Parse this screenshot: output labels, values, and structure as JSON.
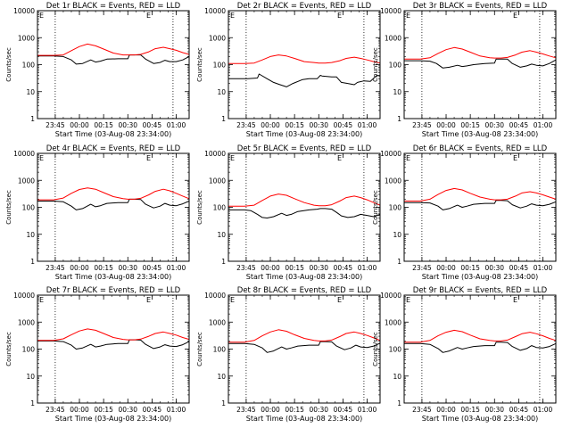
{
  "layout": {
    "rows": 3,
    "cols": 3
  },
  "common": {
    "ylabel": "Counts/sec",
    "xlabel": "Start Time (03-Aug-08 23:34:00)",
    "x_ticks": [
      "23:45",
      "00:00",
      "00:15",
      "00:30",
      "00:45",
      "01:00"
    ],
    "y_ticks": [
      "1",
      "10",
      "100",
      "1000",
      "10000"
    ],
    "corner_mark": "E"
  },
  "chart_data": [
    {
      "type": "line",
      "title": "Det 1r BLACK = Events, RED = LLD",
      "y_scale": "log",
      "ylim": [
        1,
        10000
      ],
      "x_range_minutes_from_start": [
        0,
        94
      ],
      "series": [
        {
          "color": "#000000",
          "x": [
            0,
            10,
            16,
            21,
            24,
            28,
            33,
            36,
            39,
            43,
            50,
            56,
            57,
            60,
            64,
            67,
            72,
            76,
            79,
            82,
            86,
            90,
            94
          ],
          "y": [
            210,
            210,
            200,
            150,
            105,
            110,
            150,
            125,
            135,
            160,
            165,
            165,
            230,
            230,
            230,
            160,
            110,
            120,
            145,
            130,
            130,
            150,
            200
          ]
        },
        {
          "color": "#ff0000",
          "x": [
            0,
            10,
            16,
            21,
            26,
            31,
            36,
            41,
            47,
            53,
            56,
            60,
            64,
            69,
            73,
            78,
            82,
            86,
            90,
            94
          ],
          "y": [
            220,
            220,
            230,
            330,
            470,
            580,
            500,
            380,
            270,
            230,
            230,
            230,
            240,
            300,
            390,
            440,
            390,
            340,
            280,
            240
          ]
        }
      ]
    },
    {
      "type": "line",
      "title": "Det 2r BLACK = Events, RED = LLD",
      "y_scale": "log",
      "ylim": [
        1,
        10000
      ],
      "x_range_minutes_from_start": [
        0,
        94
      ],
      "series": [
        {
          "color": "#000000",
          "x": [
            0,
            12,
            18,
            19,
            24,
            28,
            32,
            36,
            40,
            46,
            50,
            55,
            57,
            58,
            64,
            67,
            70,
            74,
            78,
            80,
            84,
            88,
            92,
            94
          ],
          "y": [
            30,
            30,
            32,
            45,
            30,
            22,
            18,
            15,
            20,
            28,
            30,
            30,
            40,
            38,
            35,
            35,
            22,
            20,
            18,
            22,
            25,
            24,
            40,
            38
          ]
        },
        {
          "color": "#ff0000",
          "x": [
            0,
            10,
            16,
            21,
            26,
            31,
            36,
            41,
            47,
            53,
            56,
            60,
            64,
            69,
            73,
            78,
            82,
            86,
            90,
            94
          ],
          "y": [
            110,
            110,
            115,
            150,
            200,
            230,
            210,
            170,
            130,
            120,
            115,
            115,
            120,
            140,
            170,
            190,
            170,
            150,
            130,
            115
          ]
        }
      ]
    },
    {
      "type": "line",
      "title": "Det 3r BLACK = Events, RED = LLD",
      "y_scale": "log",
      "ylim": [
        1,
        10000
      ],
      "x_range_minutes_from_start": [
        0,
        94
      ],
      "series": [
        {
          "color": "#000000",
          "x": [
            0,
            10,
            16,
            20,
            24,
            28,
            33,
            36,
            39,
            43,
            50,
            56,
            57,
            60,
            64,
            67,
            72,
            76,
            79,
            82,
            86,
            90,
            94
          ],
          "y": [
            140,
            140,
            135,
            110,
            75,
            80,
            95,
            85,
            90,
            100,
            110,
            115,
            160,
            160,
            160,
            110,
            80,
            90,
            105,
            95,
            90,
            110,
            150
          ]
        },
        {
          "color": "#ff0000",
          "x": [
            0,
            10,
            16,
            21,
            26,
            31,
            36,
            41,
            47,
            53,
            56,
            60,
            64,
            69,
            73,
            78,
            82,
            86,
            90,
            94
          ],
          "y": [
            160,
            160,
            180,
            260,
            360,
            430,
            380,
            290,
            210,
            180,
            175,
            175,
            185,
            230,
            290,
            330,
            290,
            250,
            210,
            180
          ]
        }
      ]
    },
    {
      "type": "line",
      "title": "Det 4r BLACK = Events, RED = LLD",
      "y_scale": "log",
      "ylim": [
        1,
        10000
      ],
      "x_range_minutes_from_start": [
        0,
        94
      ],
      "series": [
        {
          "color": "#000000",
          "x": [
            0,
            10,
            16,
            21,
            24,
            28,
            33,
            36,
            39,
            43,
            50,
            56,
            57,
            60,
            64,
            67,
            72,
            76,
            79,
            82,
            86,
            90,
            94
          ],
          "y": [
            170,
            170,
            160,
            110,
            80,
            90,
            130,
            105,
            115,
            140,
            150,
            150,
            200,
            200,
            195,
            130,
            95,
            110,
            140,
            120,
            115,
            135,
            170
          ]
        },
        {
          "color": "#ff0000",
          "x": [
            0,
            10,
            16,
            21,
            26,
            31,
            36,
            41,
            47,
            53,
            56,
            60,
            64,
            69,
            73,
            78,
            82,
            86,
            90,
            94
          ],
          "y": [
            190,
            190,
            220,
            330,
            460,
            520,
            470,
            350,
            250,
            210,
            200,
            200,
            215,
            290,
            390,
            470,
            410,
            330,
            260,
            210
          ]
        }
      ]
    },
    {
      "type": "line",
      "title": "Det 5r BLACK = Events, RED = LLD",
      "y_scale": "log",
      "ylim": [
        1,
        10000
      ],
      "x_range_minutes_from_start": [
        0,
        94
      ],
      "series": [
        {
          "color": "#000000",
          "x": [
            0,
            10,
            14,
            18,
            21,
            24,
            28,
            33,
            36,
            39,
            43,
            50,
            55,
            57,
            60,
            64,
            67,
            70,
            74,
            78,
            82,
            86,
            90,
            94
          ],
          "y": [
            80,
            80,
            75,
            55,
            42,
            40,
            45,
            60,
            50,
            55,
            70,
            80,
            85,
            90,
            90,
            85,
            65,
            48,
            42,
            45,
            55,
            50,
            45,
            55
          ]
        },
        {
          "color": "#ff0000",
          "x": [
            0,
            10,
            16,
            21,
            26,
            31,
            36,
            41,
            47,
            53,
            56,
            60,
            64,
            69,
            73,
            78,
            82,
            86,
            90,
            94
          ],
          "y": [
            110,
            110,
            120,
            180,
            260,
            310,
            280,
            210,
            150,
            120,
            115,
            115,
            125,
            170,
            230,
            260,
            230,
            190,
            150,
            120
          ]
        }
      ]
    },
    {
      "type": "line",
      "title": "Det 6r BLACK = Events, RED = LLD",
      "y_scale": "log",
      "ylim": [
        1,
        10000
      ],
      "x_range_minutes_from_start": [
        0,
        94
      ],
      "series": [
        {
          "color": "#000000",
          "x": [
            0,
            10,
            16,
            21,
            24,
            28,
            33,
            36,
            39,
            43,
            50,
            56,
            57,
            60,
            64,
            67,
            72,
            76,
            79,
            82,
            86,
            90,
            94
          ],
          "y": [
            150,
            150,
            145,
            110,
            80,
            90,
            120,
            100,
            110,
            130,
            140,
            140,
            180,
            180,
            175,
            125,
            95,
            110,
            135,
            120,
            115,
            130,
            160
          ]
        },
        {
          "color": "#ff0000",
          "x": [
            0,
            10,
            16,
            21,
            26,
            31,
            36,
            41,
            47,
            53,
            56,
            60,
            64,
            69,
            73,
            78,
            82,
            86,
            90,
            94
          ],
          "y": [
            170,
            170,
            200,
            300,
            420,
            500,
            440,
            330,
            240,
            200,
            190,
            190,
            200,
            260,
            340,
            380,
            340,
            290,
            240,
            200
          ]
        }
      ]
    },
    {
      "type": "line",
      "title": "Det 7r BLACK = Events, RED = LLD",
      "y_scale": "log",
      "ylim": [
        1,
        10000
      ],
      "x_range_minutes_from_start": [
        0,
        94
      ],
      "series": [
        {
          "color": "#000000",
          "x": [
            0,
            10,
            16,
            21,
            24,
            28,
            33,
            36,
            39,
            43,
            50,
            56,
            57,
            60,
            64,
            67,
            72,
            76,
            79,
            82,
            86,
            90,
            94
          ],
          "y": [
            200,
            200,
            190,
            140,
            100,
            110,
            150,
            120,
            130,
            150,
            160,
            160,
            220,
            220,
            215,
            150,
            105,
            120,
            145,
            130,
            125,
            145,
            190
          ]
        },
        {
          "color": "#ff0000",
          "x": [
            0,
            10,
            16,
            21,
            26,
            31,
            36,
            41,
            47,
            53,
            56,
            60,
            64,
            69,
            73,
            78,
            82,
            86,
            90,
            94
          ],
          "y": [
            210,
            210,
            240,
            340,
            470,
            560,
            500,
            380,
            270,
            230,
            220,
            220,
            235,
            300,
            380,
            430,
            380,
            330,
            270,
            230
          ]
        }
      ]
    },
    {
      "type": "line",
      "title": "Det 8r BLACK = Events, RED = LLD",
      "y_scale": "log",
      "ylim": [
        1,
        10000
      ],
      "x_range_minutes_from_start": [
        0,
        94
      ],
      "series": [
        {
          "color": "#000000",
          "x": [
            0,
            10,
            16,
            21,
            24,
            28,
            33,
            36,
            39,
            43,
            50,
            56,
            57,
            60,
            64,
            67,
            72,
            76,
            79,
            82,
            86,
            90,
            94
          ],
          "y": [
            160,
            160,
            150,
            110,
            75,
            85,
            120,
            100,
            110,
            130,
            140,
            140,
            190,
            190,
            185,
            130,
            95,
            110,
            140,
            120,
            115,
            130,
            165
          ]
        },
        {
          "color": "#ff0000",
          "x": [
            0,
            10,
            16,
            21,
            26,
            31,
            36,
            41,
            47,
            53,
            56,
            60,
            64,
            69,
            73,
            78,
            82,
            86,
            90,
            94
          ],
          "y": [
            180,
            180,
            210,
            310,
            430,
            520,
            460,
            340,
            250,
            210,
            200,
            200,
            215,
            290,
            380,
            430,
            380,
            320,
            260,
            210
          ]
        }
      ]
    },
    {
      "type": "line",
      "title": "Det 9r BLACK = Events, RED = LLD",
      "y_scale": "log",
      "ylim": [
        1,
        10000
      ],
      "x_range_minutes_from_start": [
        0,
        94
      ],
      "series": [
        {
          "color": "#000000",
          "x": [
            0,
            10,
            16,
            21,
            24,
            28,
            33,
            36,
            39,
            43,
            50,
            56,
            57,
            60,
            64,
            67,
            72,
            76,
            79,
            82,
            86,
            90,
            94
          ],
          "y": [
            160,
            160,
            150,
            105,
            75,
            85,
            115,
            100,
            110,
            125,
            135,
            135,
            180,
            180,
            175,
            125,
            90,
            105,
            135,
            115,
            110,
            125,
            160
          ]
        },
        {
          "color": "#ff0000",
          "x": [
            0,
            10,
            16,
            21,
            26,
            31,
            36,
            41,
            47,
            53,
            56,
            60,
            64,
            69,
            73,
            78,
            82,
            86,
            90,
            94
          ],
          "y": [
            180,
            180,
            210,
            310,
            420,
            500,
            440,
            330,
            240,
            210,
            200,
            200,
            215,
            290,
            370,
            420,
            370,
            310,
            250,
            210
          ]
        }
      ]
    }
  ]
}
